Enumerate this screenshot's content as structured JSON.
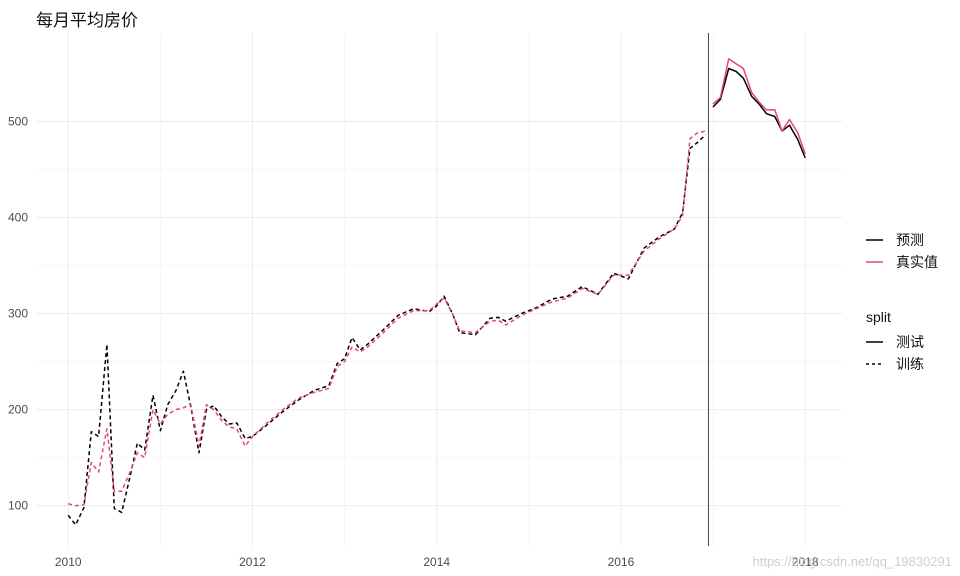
{
  "chart_data": {
    "type": "line",
    "title": "每月平均房价",
    "xlabel": "",
    "ylabel": "",
    "xlim": [
      2009.65,
      2018.4
    ],
    "ylim": [
      58,
      592
    ],
    "x_ticks": [
      2010,
      2012,
      2014,
      2016,
      2018
    ],
    "y_ticks": [
      100,
      200,
      300,
      400,
      500
    ],
    "grid": true,
    "vline_x": 2016.95,
    "legend_placement": "right",
    "colors": {
      "预测": "#000000",
      "真实值": "#e64a6b"
    },
    "legend_color": {
      "items": [
        "预测",
        "真实值"
      ]
    },
    "legend_split": {
      "title": "split",
      "items": [
        "测试",
        "训练"
      ]
    },
    "series": [
      {
        "name": "预测",
        "split": "训练",
        "linetype": "dashed",
        "x": [
          2010.0,
          2010.08,
          2010.17,
          2010.25,
          2010.33,
          2010.42,
          2010.5,
          2010.58,
          2010.67,
          2010.75,
          2010.83,
          2010.92,
          2011.0,
          2011.08,
          2011.17,
          2011.25,
          2011.33,
          2011.42,
          2011.5,
          2011.58,
          2011.67,
          2011.75,
          2011.83,
          2011.92,
          2012.0,
          2012.17,
          2012.33,
          2012.5,
          2012.67,
          2012.83,
          2012.92,
          2013.0,
          2013.08,
          2013.17,
          2013.25,
          2013.42,
          2013.58,
          2013.75,
          2013.92,
          2014.0,
          2014.08,
          2014.17,
          2014.25,
          2014.42,
          2014.58,
          2014.67,
          2014.75,
          2014.92,
          2015.08,
          2015.25,
          2015.42,
          2015.58,
          2015.75,
          2015.92,
          2016.08,
          2016.25,
          2016.42,
          2016.58,
          2016.67,
          2016.75,
          2016.83,
          2016.92
        ],
        "y": [
          90,
          80,
          98,
          177,
          172,
          268,
          97,
          93,
          130,
          165,
          158,
          215,
          178,
          205,
          220,
          240,
          203,
          155,
          200,
          204,
          192,
          185,
          186,
          170,
          172,
          185,
          198,
          210,
          220,
          225,
          248,
          253,
          275,
          262,
          268,
          283,
          298,
          305,
          302,
          308,
          318,
          300,
          280,
          278,
          295,
          296,
          292,
          300,
          306,
          315,
          318,
          328,
          320,
          342,
          336,
          368,
          380,
          388,
          405,
          472,
          478,
          486
        ]
      },
      {
        "name": "真实值",
        "split": "训练",
        "linetype": "dashed",
        "x": [
          2010.0,
          2010.08,
          2010.17,
          2010.25,
          2010.33,
          2010.42,
          2010.5,
          2010.58,
          2010.67,
          2010.75,
          2010.83,
          2010.92,
          2011.0,
          2011.08,
          2011.17,
          2011.25,
          2011.33,
          2011.42,
          2011.5,
          2011.58,
          2011.67,
          2011.75,
          2011.83,
          2011.92,
          2012.0,
          2012.17,
          2012.33,
          2012.5,
          2012.67,
          2012.83,
          2012.92,
          2013.0,
          2013.08,
          2013.17,
          2013.25,
          2013.42,
          2013.58,
          2013.75,
          2013.92,
          2014.0,
          2014.08,
          2014.17,
          2014.25,
          2014.42,
          2014.58,
          2014.67,
          2014.75,
          2014.92,
          2015.08,
          2015.25,
          2015.42,
          2015.58,
          2015.75,
          2015.92,
          2016.08,
          2016.25,
          2016.42,
          2016.58,
          2016.67,
          2016.75,
          2016.83,
          2016.92
        ],
        "y": [
          102,
          100,
          101,
          145,
          135,
          180,
          115,
          115,
          135,
          155,
          150,
          200,
          185,
          195,
          200,
          202,
          205,
          162,
          205,
          200,
          188,
          182,
          180,
          162,
          172,
          187,
          200,
          212,
          218,
          222,
          245,
          250,
          265,
          260,
          265,
          280,
          295,
          303,
          303,
          310,
          316,
          300,
          282,
          280,
          292,
          293,
          288,
          298,
          305,
          312,
          316,
          326,
          320,
          340,
          340,
          365,
          378,
          388,
          402,
          482,
          488,
          490
        ]
      },
      {
        "name": "预测",
        "split": "测试",
        "linetype": "solid",
        "x": [
          2017.0,
          2017.08,
          2017.17,
          2017.25,
          2017.33,
          2017.42,
          2017.5,
          2017.58,
          2017.67,
          2017.75,
          2017.83,
          2017.92,
          2018.0
        ],
        "y": [
          515,
          523,
          555,
          552,
          545,
          526,
          518,
          508,
          505,
          490,
          496,
          481,
          462
        ]
      },
      {
        "name": "真实值",
        "split": "测试",
        "linetype": "solid",
        "x": [
          2017.0,
          2017.08,
          2017.17,
          2017.25,
          2017.33,
          2017.42,
          2017.5,
          2017.58,
          2017.67,
          2017.75,
          2017.83,
          2017.92,
          2018.0
        ],
        "y": [
          518,
          525,
          565,
          560,
          555,
          530,
          520,
          512,
          512,
          490,
          502,
          488,
          466
        ]
      }
    ]
  },
  "watermark": "https://blog.csdn.net/qq_19830291"
}
